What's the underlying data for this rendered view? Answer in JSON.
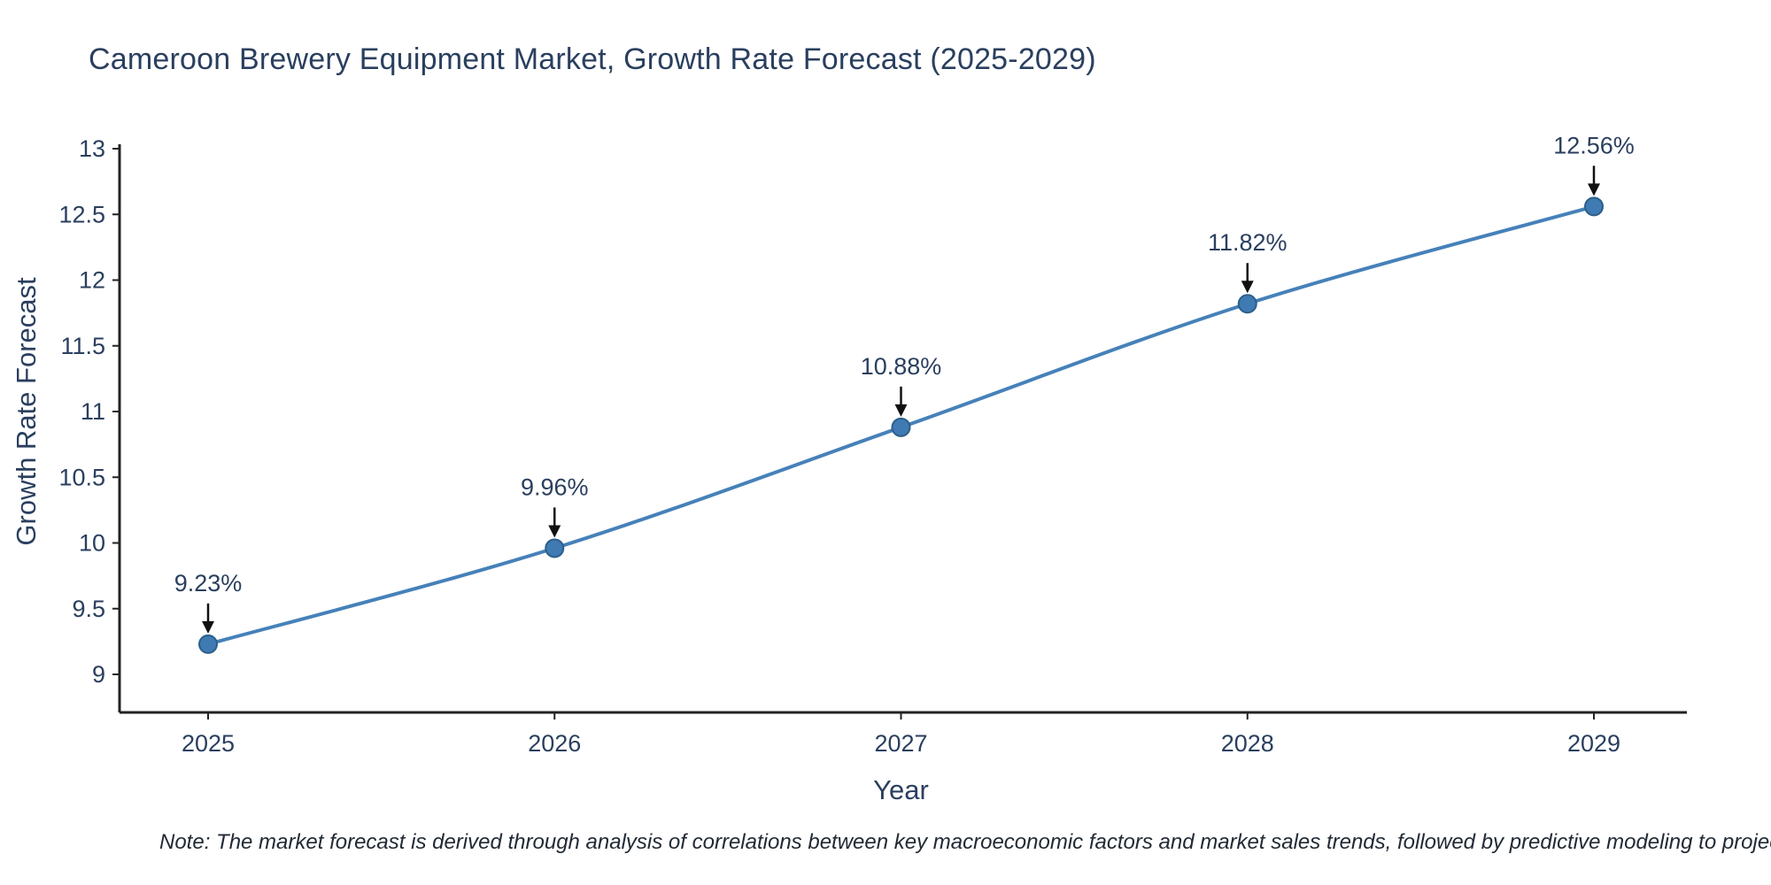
{
  "title": "Cameroon Brewery Equipment Market, Growth Rate Forecast (2025-2029)",
  "note": "Note: The market forecast is derived through analysis of correlations between key macroeconomic factors and market sales trends, followed by predictive modeling to project future sal",
  "chart_data": {
    "type": "line",
    "title": "Cameroon Brewery Equipment Market, Growth Rate Forecast (2025-2029)",
    "x": [
      2025,
      2026,
      2027,
      2028,
      2029
    ],
    "values": [
      9.23,
      9.96,
      10.88,
      11.82,
      12.56
    ],
    "point_labels": [
      "9.23%",
      "9.96%",
      "10.88%",
      "11.82%",
      "12.56%"
    ],
    "xlabel": "Year",
    "ylabel": "Growth Rate Forecast",
    "ylim": [
      8.7,
      13
    ],
    "yticks": [
      9,
      9.5,
      10,
      10.5,
      11,
      11.5,
      12,
      12.5,
      13
    ],
    "xticks": [
      "2025",
      "2026",
      "2027",
      "2028",
      "2029"
    ],
    "grid": false,
    "legend": "none",
    "line_color": "#4681b9",
    "marker_color": "#3f7ab3",
    "marker_edge_color": "#2c5f8a",
    "axis_color": "#222222",
    "text_color": "#2a3f5f",
    "annotation_arrow_color": "#111111"
  }
}
